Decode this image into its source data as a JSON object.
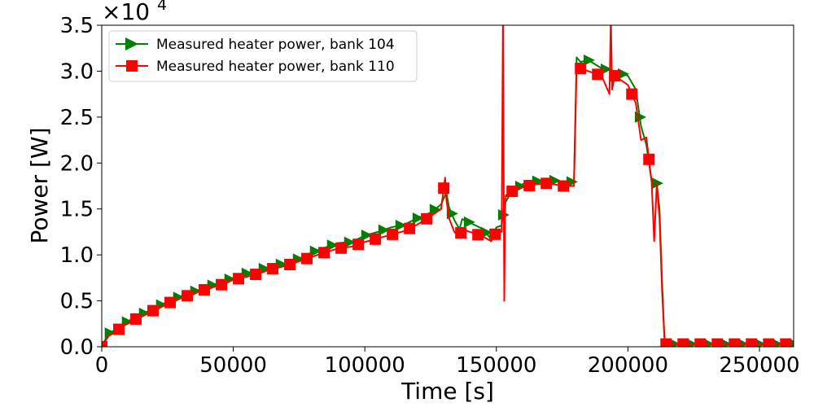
{
  "chart_data": {
    "type": "line",
    "title": "",
    "xlabel": "Time [s]",
    "ylabel": "Power [W]",
    "y_multiplier_label": "×10",
    "y_multiplier_exp": "4",
    "xlim": [
      0,
      263000
    ],
    "ylim": [
      0,
      35000
    ],
    "x_ticks": [
      0,
      50000,
      100000,
      150000,
      200000,
      250000
    ],
    "x_tick_labels": [
      "0",
      "50000",
      "100000",
      "150000",
      "200000",
      "250000"
    ],
    "y_ticks": [
      0,
      5000,
      10000,
      15000,
      20000,
      25000,
      30000,
      35000
    ],
    "y_tick_labels": [
      "0.0",
      "0.5",
      "1.0",
      "1.5",
      "2.0",
      "2.5",
      "3.0",
      "3.5"
    ],
    "grid": false,
    "legend_position": "top-left",
    "series": [
      {
        "name": "Measured heater power, bank 104",
        "color": "#008000",
        "marker": "triangle-right",
        "x": [
          0,
          1000,
          3000,
          6000,
          10000,
          15000,
          20000,
          25000,
          30000,
          35000,
          40000,
          45000,
          50000,
          55000,
          60000,
          65000,
          70000,
          75000,
          80000,
          85000,
          90000,
          95000,
          100000,
          105000,
          110000,
          115000,
          120000,
          125000,
          129000,
          131000,
          132000,
          134000,
          136000,
          137000,
          140000,
          145000,
          148000,
          150000,
          152000,
          153000,
          155000,
          160000,
          165000,
          170000,
          175000,
          179500,
          180500,
          182000,
          185000,
          190000,
          195000,
          200000,
          203000,
          205000,
          207000,
          209000,
          211000,
          212000,
          213000,
          214000,
          220000,
          240000,
          262000
        ],
        "y": [
          0,
          600,
          1500,
          2000,
          2800,
          3500,
          4200,
          4900,
          5500,
          6000,
          6500,
          7000,
          7500,
          8000,
          8400,
          8800,
          9100,
          9600,
          10300,
          10800,
          11300,
          11400,
          12100,
          12500,
          13000,
          13300,
          14000,
          14600,
          15500,
          16800,
          15200,
          13800,
          12800,
          13900,
          13500,
          12800,
          11700,
          13000,
          13200,
          15500,
          16500,
          17700,
          18000,
          18300,
          17800,
          18000,
          31500,
          31000,
          31200,
          30300,
          30000,
          29500,
          28000,
          24000,
          22000,
          18000,
          17800,
          15000,
          7000,
          300,
          300,
          300,
          300
        ]
      },
      {
        "name": "Measured heater power, bank 110",
        "color": "#ff0000",
        "marker": "square",
        "x": [
          0,
          1000,
          3000,
          6000,
          10000,
          15000,
          20000,
          25000,
          30000,
          35000,
          40000,
          45000,
          50000,
          55000,
          60000,
          65000,
          70000,
          75000,
          80000,
          85000,
          90000,
          95000,
          100000,
          105000,
          110000,
          115000,
          120000,
          125000,
          129000,
          130500,
          131000,
          132000,
          134000,
          136000,
          137000,
          140000,
          145000,
          148000,
          150000,
          152000,
          152500,
          153000,
          153300,
          153600,
          155000,
          160000,
          165000,
          170000,
          175000,
          179500,
          180500,
          182000,
          185000,
          190000,
          193000,
          193500,
          194000,
          195000,
          200000,
          203000,
          205000,
          207000,
          209000,
          210000,
          211000,
          212000,
          213000,
          214000,
          220000,
          240000,
          262000
        ],
        "y": [
          0,
          500,
          1300,
          1800,
          2600,
          3300,
          4000,
          4700,
          5300,
          5800,
          6300,
          6700,
          7300,
          7600,
          8000,
          8500,
          8800,
          9300,
          9800,
          10300,
          10700,
          10900,
          11400,
          11800,
          12200,
          12600,
          13300,
          14200,
          15000,
          18400,
          16000,
          14000,
          12500,
          12000,
          12800,
          12500,
          12000,
          11500,
          12500,
          12500,
          36000,
          5000,
          15000,
          16500,
          16800,
          17400,
          17700,
          17800,
          17500,
          17500,
          30500,
          30300,
          30000,
          29500,
          27500,
          36000,
          28000,
          29500,
          28500,
          26500,
          22500,
          22800,
          18000,
          11500,
          17800,
          14000,
          6000,
          300,
          300,
          300,
          300
        ]
      }
    ]
  }
}
